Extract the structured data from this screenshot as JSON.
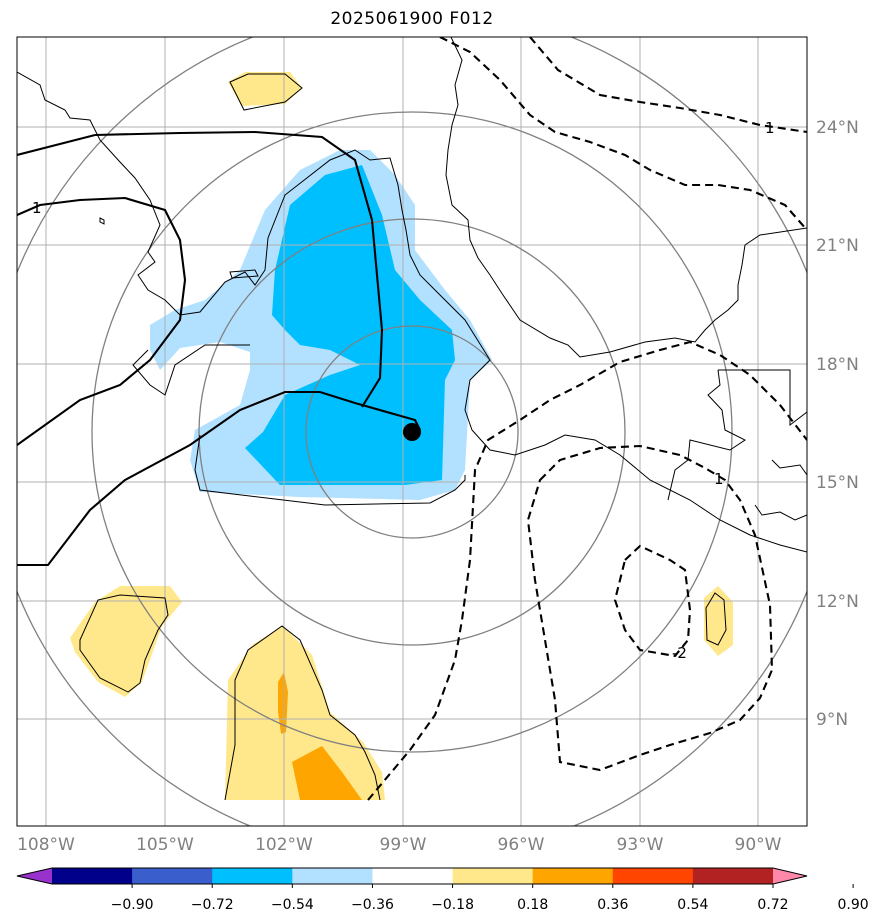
{
  "title": "2025061900 F012",
  "map": {
    "lon_labels": [
      "108°W",
      "105°W",
      "102°W",
      "99°W",
      "96°W",
      "93°W",
      "90°W"
    ],
    "lat_labels": [
      "24°N",
      "21°N",
      "18°N",
      "15°N",
      "12°N",
      "9°N"
    ],
    "contour_labels": [
      "1",
      "1",
      "1",
      "-2"
    ],
    "storm_center": {
      "lon": "98.8°W",
      "lat": "16.3°N"
    }
  },
  "colorbar": {
    "ticks": [
      "−0.90",
      "−0.72",
      "−0.54",
      "−0.36",
      "−0.18",
      "0.18",
      "0.36",
      "0.54",
      "0.72",
      "0.90"
    ],
    "colors": [
      "#9932cc",
      "#00008b",
      "#3a5fcd",
      "#00bfff",
      "#b2e0ff",
      "#ffffff",
      "#ffe88c",
      "#ffa500",
      "#ff4500",
      "#b22222",
      "#ff88aa"
    ]
  },
  "colors": {
    "fill_light_blue": "#b2e0ff",
    "fill_blue": "#00bfff",
    "fill_light_yellow": "#ffe88c",
    "fill_orange": "#ffa500",
    "grid": "#b0b0b0",
    "range_rings": "#808080"
  }
}
